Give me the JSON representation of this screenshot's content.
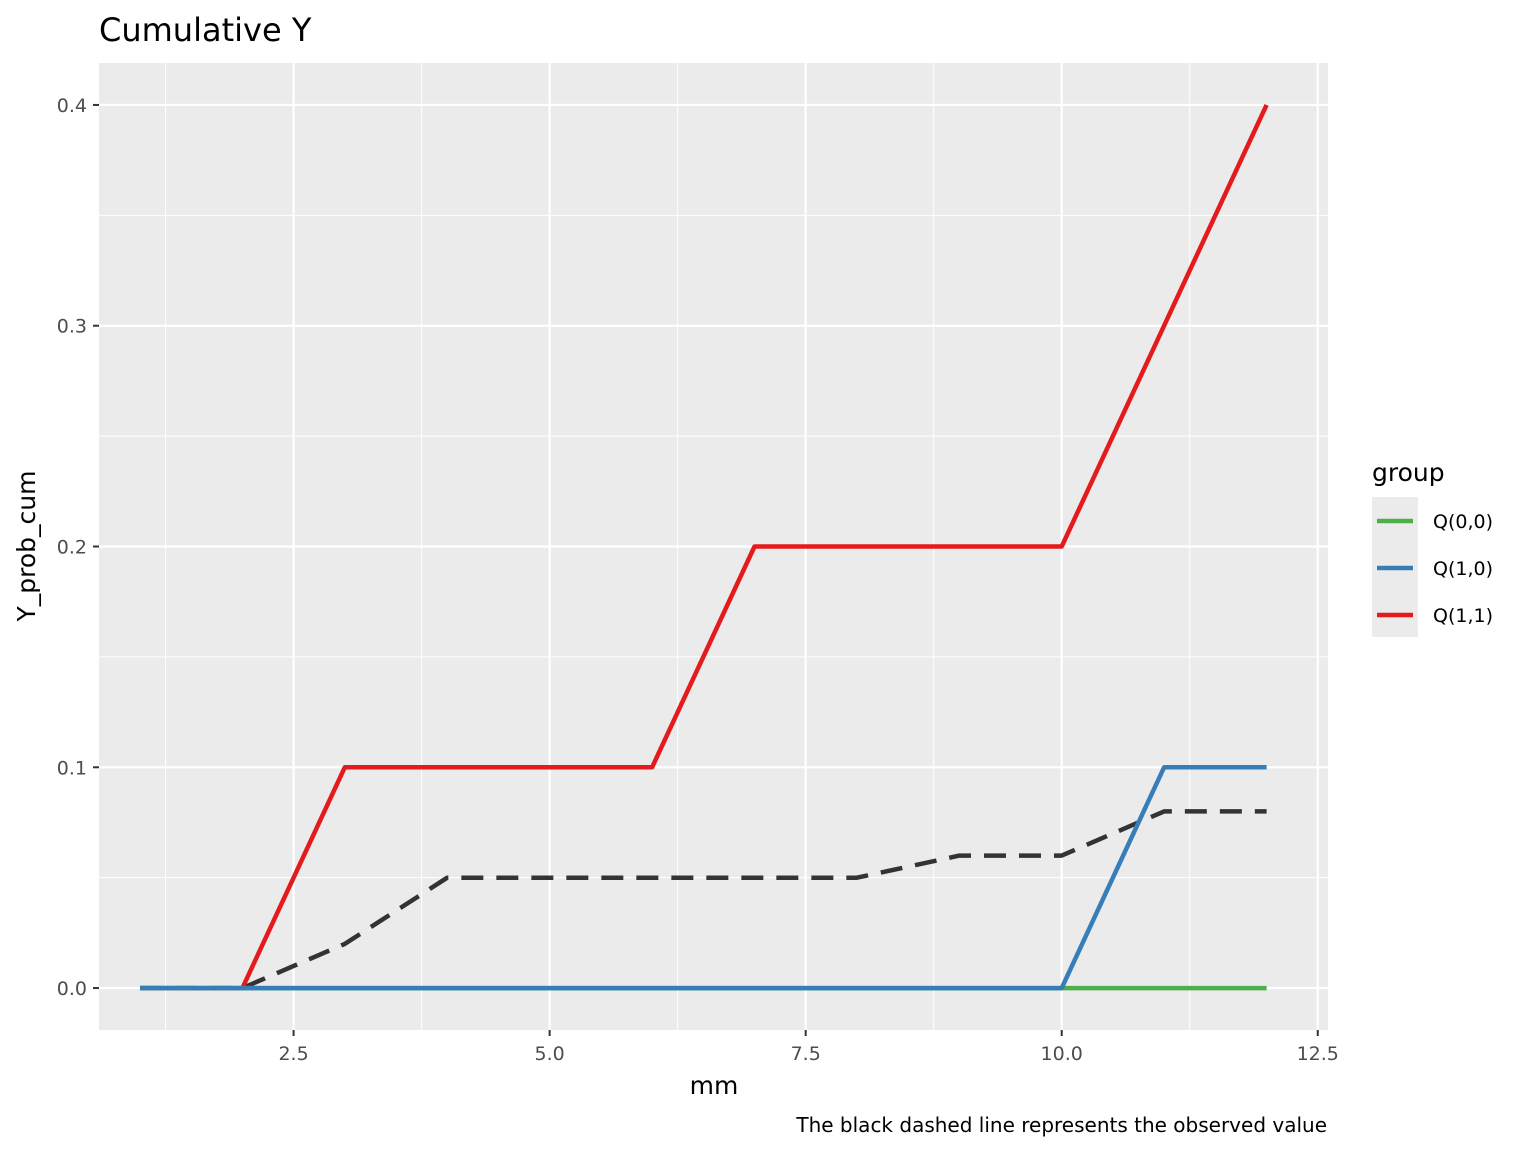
{
  "chart_data": {
    "type": "line",
    "title": "Cumulative Y",
    "xlabel": "mm",
    "ylabel": "Y_prob_cum",
    "caption": "The black dashed line represents the observed value",
    "xlim": [
      0.6,
      12.6
    ],
    "ylim": [
      -0.019,
      0.419
    ],
    "x_ticks": [
      2.5,
      5.0,
      7.5,
      10.0,
      12.5
    ],
    "x_tick_labels": [
      "2.5",
      "5.0",
      "7.5",
      "10.0",
      "12.5"
    ],
    "y_ticks": [
      0.0,
      0.1,
      0.2,
      0.3,
      0.4
    ],
    "y_tick_labels": [
      "0.0",
      "0.1",
      "0.2",
      "0.3",
      "0.4"
    ],
    "grid": true,
    "legend": {
      "title": "group",
      "position": "right"
    },
    "x": [
      1,
      2,
      3,
      4,
      5,
      6,
      7,
      8,
      9,
      10,
      11,
      12
    ],
    "series": [
      {
        "name": "Q(0,0)",
        "color": "#4daf4a",
        "values": [
          0,
          0,
          0,
          0,
          0,
          0,
          0,
          0,
          0,
          0,
          0,
          0
        ]
      },
      {
        "name": "Q(1,0)",
        "color": "#377eb8",
        "values": [
          0,
          0,
          0,
          0,
          0,
          0,
          0,
          0,
          0,
          0,
          0.1,
          0.1
        ]
      },
      {
        "name": "Q(1,1)",
        "color": "#e41a1c",
        "values": [
          0,
          0,
          0.1,
          0.1,
          0.1,
          0.1,
          0.2,
          0.2,
          0.2,
          0.2,
          0.3,
          0.4
        ]
      }
    ],
    "observed": {
      "color": "#333333",
      "dashed": true,
      "values": [
        0,
        0,
        0.02,
        0.05,
        0.05,
        0.05,
        0.05,
        0.05,
        0.06,
        0.06,
        0.08,
        0.08
      ]
    }
  }
}
